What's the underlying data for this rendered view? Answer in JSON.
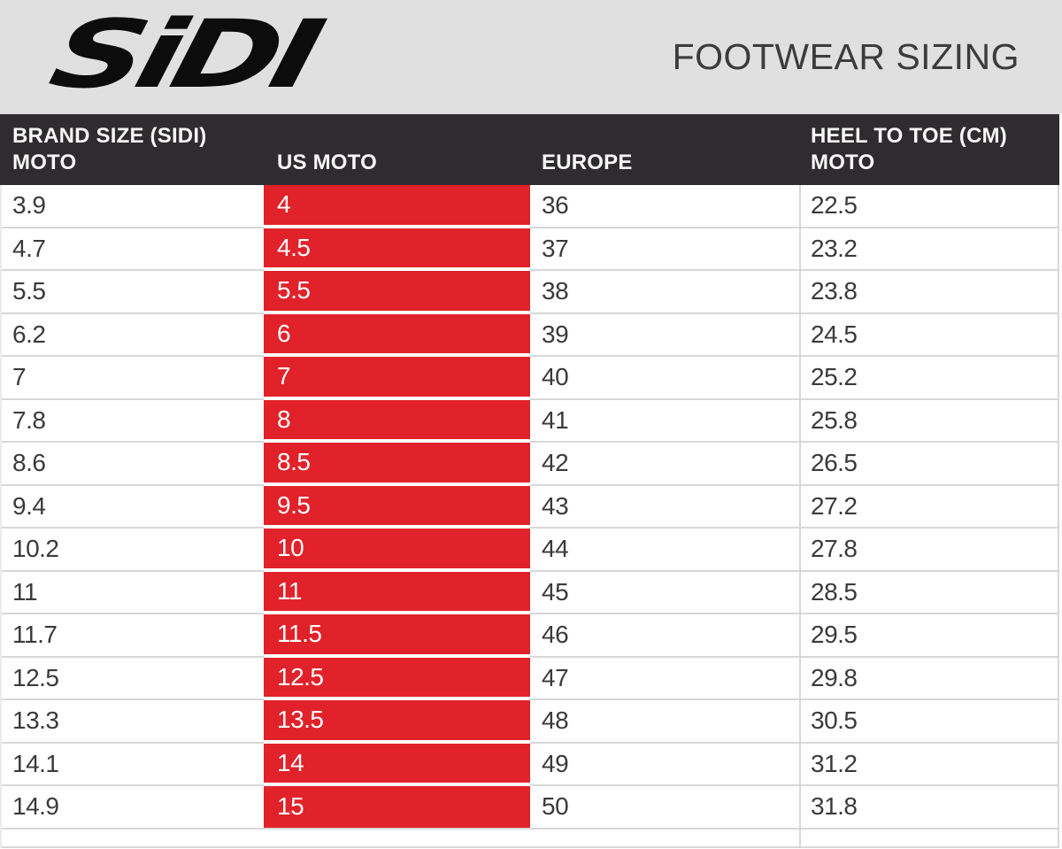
{
  "page": {
    "logo_text": "SiDI",
    "title": "FOOTWEAR SIZING"
  },
  "table": {
    "header": {
      "col1_line1": "BRAND SIZE (SIDI)",
      "col1_line2": "MOTO",
      "col2": "US MOTO",
      "col3": "EUROPE",
      "col4_line1": "HEEL TO TOE (CM)",
      "col4_line2": "MOTO"
    }
  },
  "colors": {
    "accent_red": "#e1222a",
    "header_dark": "#2e2c2e",
    "band_gray": "#e1e0e0",
    "grid_line_gray": "#d8d7d7",
    "text_dark": "#3b3a3a",
    "text_white": "#ffffff",
    "logo_black": "#0c0c0c"
  },
  "chart_data": {
    "type": "table",
    "title": "FOOTWEAR SIZING",
    "columns": [
      "BRAND SIZE (SIDI) MOTO",
      "US MOTO",
      "EUROPE",
      "HEEL TO TOE (CM) MOTO"
    ],
    "highlighted_column": "US MOTO",
    "rows": [
      [
        "3.9",
        "4",
        "36",
        "22.5"
      ],
      [
        "4.7",
        "4.5",
        "37",
        "23.2"
      ],
      [
        "5.5",
        "5.5",
        "38",
        "23.8"
      ],
      [
        "6.2",
        "6",
        "39",
        "24.5"
      ],
      [
        "7",
        "7",
        "40",
        "25.2"
      ],
      [
        "7.8",
        "8",
        "41",
        "25.8"
      ],
      [
        "8.6",
        "8.5",
        "42",
        "26.5"
      ],
      [
        "9.4",
        "9.5",
        "43",
        "27.2"
      ],
      [
        "10.2",
        "10",
        "44",
        "27.8"
      ],
      [
        "11",
        "11",
        "45",
        "28.5"
      ],
      [
        "11.7",
        "11.5",
        "46",
        "29.5"
      ],
      [
        "12.5",
        "12.5",
        "47",
        "29.8"
      ],
      [
        "13.3",
        "13.5",
        "48",
        "30.5"
      ],
      [
        "14.1",
        "14",
        "49",
        "31.2"
      ],
      [
        "14.9",
        "15",
        "50",
        "31.8"
      ]
    ]
  }
}
